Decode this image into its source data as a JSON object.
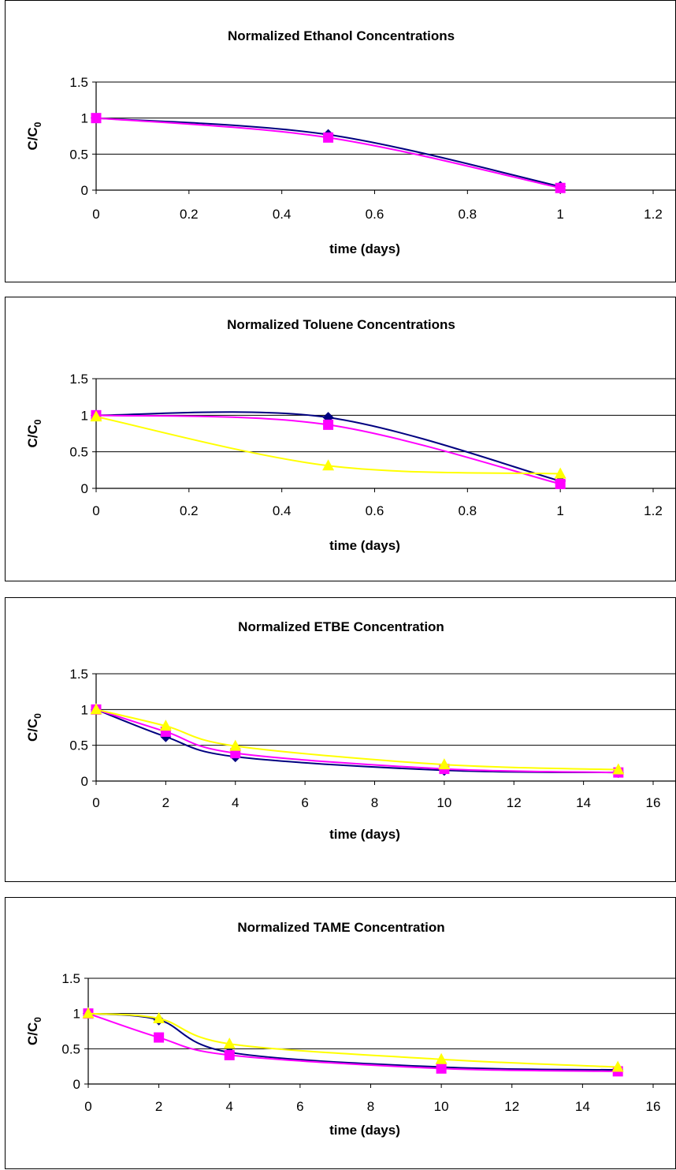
{
  "chart_data": [
    {
      "type": "line",
      "title": "Normalized Ethanol Concentrations",
      "xlabel": "time (days)",
      "ylabel": "C/C",
      "ylabel_sub": "0",
      "xlim": [
        0,
        1.2
      ],
      "ylim": [
        0,
        1.5
      ],
      "xticks": [
        "0",
        "0.2",
        "0.4",
        "0.6",
        "0.8",
        "1",
        "1.2"
      ],
      "yticks": [
        "0",
        "0.5",
        "1",
        "1.5"
      ],
      "grid": "horizontal",
      "series": [
        {
          "color": "#000080",
          "marker": "diamond",
          "x": [
            0,
            0.5,
            1
          ],
          "y": [
            1,
            0.77,
            0.05
          ]
        },
        {
          "color": "#FF00FF",
          "marker": "square",
          "x": [
            0,
            0.5,
            1
          ],
          "y": [
            1,
            0.73,
            0.03
          ]
        }
      ]
    },
    {
      "type": "line",
      "title": "Normalized Toluene Concentrations",
      "xlabel": "time (days)",
      "ylabel": "C/C",
      "ylabel_sub": "0",
      "xlim": [
        0,
        1.2
      ],
      "ylim": [
        0,
        1.5
      ],
      "xticks": [
        "0",
        "0.2",
        "0.4",
        "0.6",
        "0.8",
        "1",
        "1.2"
      ],
      "yticks": [
        "0",
        "0.5",
        "1",
        "1.5"
      ],
      "grid": "horizontal",
      "series": [
        {
          "color": "#000080",
          "marker": "diamond",
          "x": [
            0,
            0.5,
            1
          ],
          "y": [
            1,
            0.97,
            0.1
          ]
        },
        {
          "color": "#FF00FF",
          "marker": "square",
          "x": [
            0,
            0.5,
            1
          ],
          "y": [
            1,
            0.87,
            0.06
          ]
        },
        {
          "color": "#FFFF00",
          "marker": "triangle",
          "x": [
            0,
            0.5,
            1
          ],
          "y": [
            0.98,
            0.31,
            0.2
          ]
        }
      ]
    },
    {
      "type": "line",
      "title": "Normalized ETBE Concentration",
      "xlabel": "time (days)",
      "ylabel": "C/C",
      "ylabel_sub": "0",
      "xlim": [
        0,
        16
      ],
      "ylim": [
        0,
        1.5
      ],
      "xticks": [
        "0",
        "2",
        "4",
        "6",
        "8",
        "10",
        "12",
        "14",
        "16"
      ],
      "yticks": [
        "0",
        "0.5",
        "1",
        "1.5"
      ],
      "grid": "horizontal",
      "series": [
        {
          "color": "#000080",
          "marker": "diamond",
          "x": [
            0,
            2,
            4,
            10,
            15
          ],
          "y": [
            1,
            0.62,
            0.34,
            0.15,
            0.12
          ]
        },
        {
          "color": "#FF00FF",
          "marker": "square",
          "x": [
            0,
            2,
            4,
            10,
            15
          ],
          "y": [
            1,
            0.69,
            0.39,
            0.17,
            0.12
          ]
        },
        {
          "color": "#FFFF00",
          "marker": "triangle",
          "x": [
            0,
            2,
            4,
            10,
            15
          ],
          "y": [
            1,
            0.77,
            0.49,
            0.23,
            0.16
          ]
        }
      ]
    },
    {
      "type": "line",
      "title": "Normalized TAME Concentration",
      "xlabel": "time (days)",
      "ylabel": "C/C",
      "ylabel_sub": "0",
      "xlim": [
        0,
        16
      ],
      "ylim": [
        0,
        1.5
      ],
      "xticks": [
        "0",
        "2",
        "4",
        "6",
        "8",
        "10",
        "12",
        "14",
        "16"
      ],
      "yticks": [
        "0",
        "0.5",
        "1",
        "1.5"
      ],
      "grid": "horizontal",
      "series": [
        {
          "color": "#000080",
          "marker": "diamond",
          "x": [
            0,
            2,
            4,
            10,
            15
          ],
          "y": [
            1,
            0.91,
            0.45,
            0.24,
            0.2
          ]
        },
        {
          "color": "#FF00FF",
          "marker": "square",
          "x": [
            0,
            2,
            4,
            10,
            15
          ],
          "y": [
            1,
            0.66,
            0.41,
            0.22,
            0.18
          ]
        },
        {
          "color": "#FFFF00",
          "marker": "triangle",
          "x": [
            0,
            2,
            4,
            10,
            15
          ],
          "y": [
            1,
            0.93,
            0.57,
            0.35,
            0.24
          ]
        }
      ]
    }
  ]
}
